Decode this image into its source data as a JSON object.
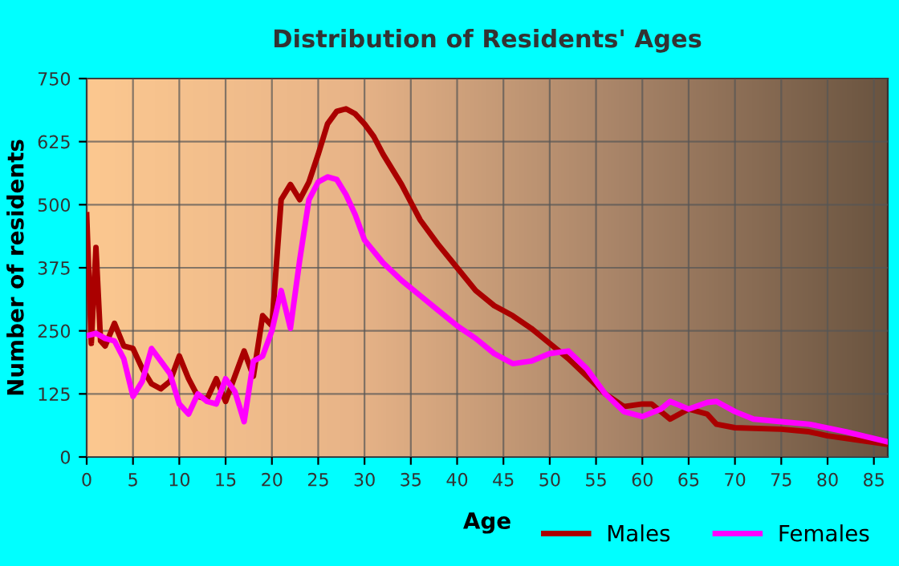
{
  "chart_data": {
    "type": "line",
    "title": "Distribution of Residents' Ages",
    "xlabel": "Age",
    "ylabel": "Number of residents",
    "xlim": [
      0,
      86.5
    ],
    "xticks": [
      0,
      5,
      10,
      15,
      20,
      25,
      30,
      35,
      40,
      45,
      50,
      55,
      60,
      65,
      70,
      75,
      80,
      85
    ],
    "ylim": [
      0,
      750
    ],
    "yticks": [
      0,
      125,
      250,
      375,
      500,
      625,
      750
    ],
    "grid": true,
    "legend": "bottom",
    "marker": "none",
    "line_style": "solid",
    "series": [
      {
        "name": "Males",
        "color": "#aa0000",
        "x": [
          0,
          0.5,
          1,
          1.5,
          2,
          3,
          4,
          5,
          6,
          7,
          8,
          9,
          10,
          11,
          12,
          13,
          14,
          15,
          16,
          17,
          18,
          19,
          20,
          21,
          22,
          23,
          24,
          25,
          26,
          27,
          28,
          29,
          30,
          31,
          32,
          34,
          36,
          38,
          40,
          42,
          44,
          46,
          48,
          50,
          52,
          54,
          56,
          58,
          60,
          61,
          63,
          65,
          67,
          68,
          70,
          75,
          78,
          80,
          86.5
        ],
        "values": [
          480,
          225,
          415,
          230,
          220,
          265,
          220,
          215,
          175,
          145,
          135,
          150,
          200,
          155,
          120,
          115,
          155,
          110,
          160,
          210,
          160,
          280,
          260,
          510,
          540,
          510,
          545,
          600,
          660,
          685,
          690,
          680,
          660,
          635,
          600,
          540,
          470,
          420,
          375,
          330,
          300,
          280,
          255,
          225,
          195,
          160,
          125,
          100,
          105,
          105,
          75,
          95,
          85,
          65,
          58,
          55,
          50,
          42,
          25
        ]
      },
      {
        "name": "Females",
        "color": "#ff00ff",
        "x": [
          0,
          1,
          2,
          3,
          4,
          5,
          6,
          7,
          8,
          9,
          10,
          11,
          12,
          13,
          14,
          15,
          16,
          17,
          18,
          19,
          20,
          21,
          22,
          23,
          24,
          25,
          26,
          27,
          28,
          29,
          30,
          32,
          34,
          36,
          38,
          40,
          42,
          44,
          46,
          48,
          50,
          52,
          54,
          56,
          58,
          60,
          62,
          63,
          65,
          67,
          68,
          70,
          72,
          75,
          78,
          82,
          86.5
        ],
        "values": [
          240,
          245,
          235,
          230,
          195,
          120,
          150,
          215,
          190,
          165,
          105,
          85,
          125,
          110,
          105,
          155,
          130,
          70,
          190,
          200,
          250,
          330,
          255,
          390,
          510,
          545,
          555,
          550,
          520,
          480,
          430,
          385,
          350,
          320,
          290,
          260,
          235,
          205,
          185,
          190,
          205,
          210,
          175,
          125,
          90,
          80,
          95,
          110,
          95,
          108,
          110,
          90,
          75,
          70,
          65,
          50,
          30
        ]
      }
    ]
  }
}
